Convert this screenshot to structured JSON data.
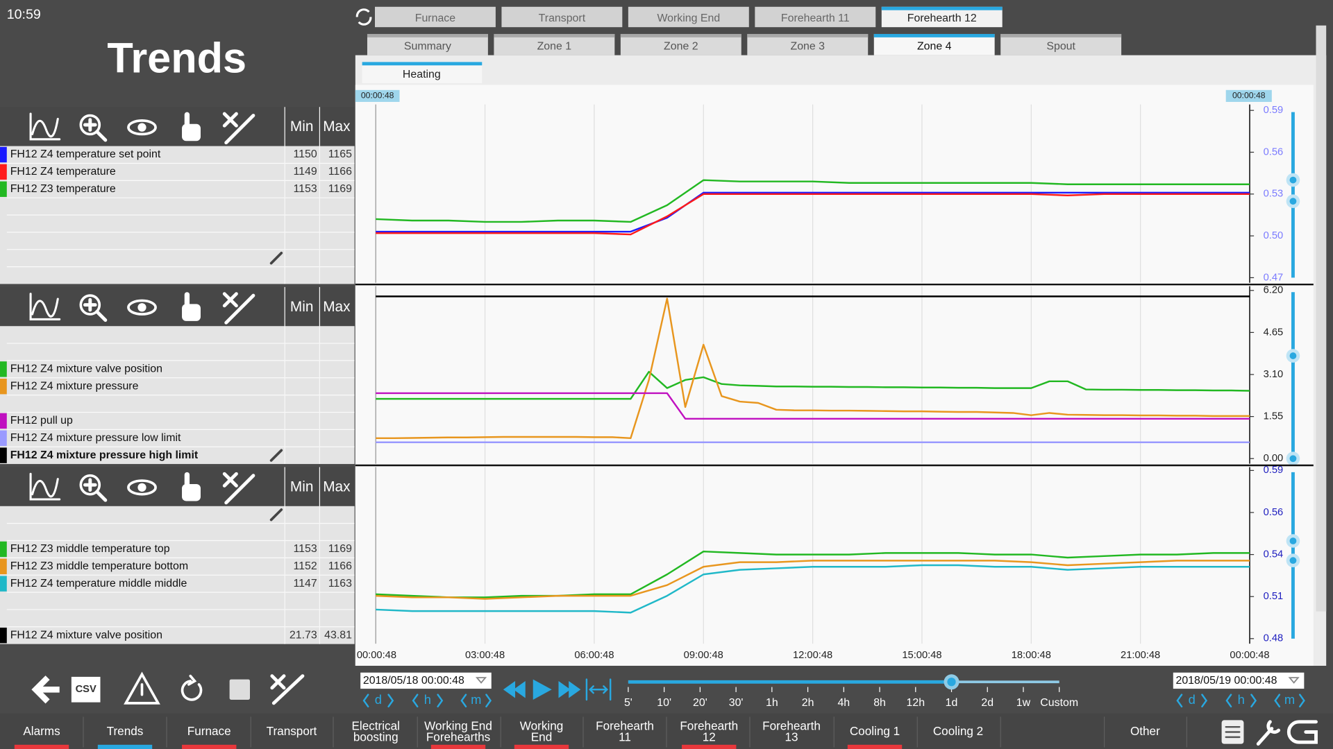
{
  "status": {
    "time": "10:59"
  },
  "header": {
    "title": "Trends"
  },
  "top_tabs": [
    "Furnace",
    "Transport",
    "Working End",
    "Forehearth 11",
    "Forehearth 12"
  ],
  "top_tabs_active": 4,
  "zone_tabs": [
    "Summary",
    "Zone 1",
    "Zone 2",
    "Zone 3",
    "Zone 4",
    "Spout"
  ],
  "zone_tabs_active": 4,
  "sub_tab": "Heating",
  "cursor_times": [
    "00:00:48",
    "00:00:48"
  ],
  "panel_headers": [
    "Min",
    "Max"
  ],
  "time_axis": [
    "00:00:48",
    "03:00:48",
    "06:00:48",
    "09:00:48",
    "12:00:48",
    "15:00:48",
    "18:00:48",
    "21:00:48",
    "00:00:48"
  ],
  "chart_data": [
    {
      "type": "line",
      "ylim": [
        0.47,
        0.59
      ],
      "yticks": [
        0.47,
        {
          "value": 0.5,
          "label": "0.50"
        },
        0.53,
        0.56,
        0.59
      ],
      "axis_color": "#7b7bff",
      "series": [
        {
          "name": "FH12 Z4 temperature set point",
          "color": "#1a1aff",
          "min": 1150,
          "max": 1165,
          "values": [
            0.503,
            0.503,
            0.503,
            0.503,
            0.503,
            0.503,
            0.503,
            0.503,
            0.513,
            0.531,
            0.531,
            0.531,
            0.531,
            0.531,
            0.531,
            0.531,
            0.531,
            0.531,
            0.531,
            0.531,
            0.531,
            0.531,
            0.531,
            0.531,
            0.531
          ]
        },
        {
          "name": "FH12 Z4 temperature",
          "color": "#ff1a1a",
          "min": 1149,
          "max": 1166,
          "values": [
            0.502,
            0.502,
            0.502,
            0.502,
            0.502,
            0.502,
            0.502,
            0.501,
            0.514,
            0.53,
            0.53,
            0.53,
            0.53,
            0.53,
            0.53,
            0.53,
            0.53,
            0.53,
            0.53,
            0.529,
            0.53,
            0.53,
            0.53,
            0.53,
            0.53
          ]
        },
        {
          "name": "FH12 Z3 temperature",
          "color": "#22b822",
          "min": 1153,
          "max": 1169,
          "values": [
            0.512,
            0.511,
            0.511,
            0.51,
            0.51,
            0.511,
            0.511,
            0.51,
            0.522,
            0.54,
            0.539,
            0.539,
            0.539,
            0.538,
            0.538,
            0.538,
            0.538,
            0.538,
            0.538,
            0.537,
            0.537,
            0.537,
            0.537,
            0.537,
            0.537
          ]
        }
      ]
    },
    {
      "type": "line",
      "ylim": [
        0,
        6.2
      ],
      "yticks": [
        {
          "value": 0,
          "label": "0.00"
        },
        1.55,
        {
          "value": 3.1,
          "label": "3.10"
        },
        4.65,
        {
          "value": 6.2,
          "label": "6.20"
        }
      ],
      "axis_color": "#222222",
      "series": [
        {
          "name": "FH12 Z4 mixture valve position",
          "color": "#22b822",
          "values": [
            2.2,
            2.2,
            2.2,
            2.2,
            2.2,
            2.2,
            2.2,
            2.2,
            2.2,
            2.2,
            2.2,
            2.2,
            2.2,
            2.2,
            2.2,
            3.2,
            2.6,
            2.9,
            3.0,
            2.75,
            2.7,
            2.68,
            2.66,
            2.66,
            2.65,
            2.65,
            2.64,
            2.64,
            2.63,
            2.63,
            2.62,
            2.62,
            2.61,
            2.61,
            2.6,
            2.6,
            2.6,
            2.85,
            2.85,
            2.55,
            2.54,
            2.54,
            2.53,
            2.53,
            2.52,
            2.52,
            2.51,
            2.51,
            2.5
          ]
        },
        {
          "name": "FH12 Z4 mixture pressure",
          "color": "#e8961e",
          "values": [
            0.75,
            0.75,
            0.76,
            0.77,
            0.78,
            0.78,
            0.79,
            0.8,
            0.8,
            0.8,
            0.8,
            0.8,
            0.79,
            0.79,
            0.75,
            2.9,
            5.9,
            1.9,
            4.2,
            2.3,
            2.1,
            2.05,
            1.8,
            1.78,
            1.78,
            1.77,
            1.77,
            1.76,
            1.75,
            1.74,
            1.74,
            1.73,
            1.72,
            1.72,
            1.7,
            1.68,
            1.6,
            1.68,
            1.62,
            1.61,
            1.6,
            1.6,
            1.59,
            1.59,
            1.58,
            1.58,
            1.57,
            1.57,
            1.57
          ]
        },
        {
          "name": "FH12 pull up",
          "color": "#c010c0",
          "values": [
            2.41,
            2.41,
            2.41,
            2.41,
            2.41,
            2.41,
            2.41,
            2.41,
            2.41,
            2.41,
            2.41,
            2.41,
            2.41,
            2.41,
            2.41,
            2.41,
            2.41,
            1.47,
            1.47,
            1.47,
            1.47,
            1.47,
            1.47,
            1.47,
            1.47,
            1.47,
            1.47,
            1.47,
            1.47,
            1.47,
            1.47,
            1.47,
            1.47,
            1.47,
            1.47,
            1.47,
            1.47,
            1.47,
            1.47,
            1.47,
            1.47,
            1.47,
            1.47,
            1.47,
            1.47,
            1.47,
            1.47,
            1.47,
            1.47
          ]
        },
        {
          "name": "FH12 Z4 mixture pressure low limit",
          "color": "#9a9aff",
          "values": [
            0.6,
            0.6,
            0.6,
            0.6,
            0.6,
            0.6,
            0.6,
            0.6,
            0.6,
            0.6,
            0.6,
            0.6,
            0.6,
            0.6,
            0.6,
            0.6,
            0.6,
            0.6,
            0.6,
            0.6,
            0.6,
            0.6,
            0.6,
            0.6,
            0.6,
            0.6,
            0.6,
            0.6,
            0.6,
            0.6,
            0.6,
            0.6,
            0.6,
            0.6,
            0.6,
            0.6,
            0.6,
            0.6,
            0.6,
            0.6,
            0.6,
            0.6,
            0.6,
            0.6,
            0.6,
            0.6,
            0.6,
            0.6,
            0.6
          ]
        },
        {
          "name": "FH12 Z4 mixture pressure high limit",
          "color": "#000000",
          "bold": true,
          "values": [
            5.98,
            5.98,
            5.98,
            5.98,
            5.98,
            5.98,
            5.98,
            5.98,
            5.98,
            5.98,
            5.98,
            5.98,
            5.98,
            5.98,
            5.98,
            5.98,
            5.98,
            5.98,
            5.98,
            5.98,
            5.98,
            5.98,
            5.98,
            5.98,
            5.98,
            5.98,
            5.98,
            5.98,
            5.98,
            5.98,
            5.98,
            5.98,
            5.98,
            5.98,
            5.98,
            5.98,
            5.98,
            5.98,
            5.98,
            5.98,
            5.98,
            5.98,
            5.98,
            5.98,
            5.98,
            5.98,
            5.98,
            5.98,
            5.98
          ]
        }
      ]
    },
    {
      "type": "line",
      "ylim": [
        0.48,
        0.59
      ],
      "yticks": [
        0.48,
        {
          "value": 0.5075,
          "label": "0.51"
        },
        {
          "value": 0.535,
          "label": "0.54"
        },
        {
          "value": 0.5625,
          "label": "0.56"
        },
        0.59
      ],
      "axis_color": "#2020c0",
      "series": [
        {
          "name": "FH12 Z3 middle temperature top",
          "color": "#22b822",
          "min": 1153,
          "max": 1169,
          "values": [
            0.509,
            0.508,
            0.507,
            0.507,
            0.508,
            0.508,
            0.509,
            0.509,
            0.522,
            0.537,
            0.536,
            0.535,
            0.535,
            0.535,
            0.536,
            0.536,
            0.536,
            0.535,
            0.535,
            0.533,
            0.534,
            0.535,
            0.535,
            0.536,
            0.536
          ]
        },
        {
          "name": "FH12 Z3 middle temperature bottom",
          "color": "#e8961e",
          "min": 1152,
          "max": 1166,
          "values": [
            0.508,
            0.507,
            0.507,
            0.506,
            0.507,
            0.508,
            0.508,
            0.508,
            0.515,
            0.527,
            0.53,
            0.53,
            0.531,
            0.531,
            0.531,
            0.531,
            0.531,
            0.531,
            0.53,
            0.528,
            0.529,
            0.53,
            0.531,
            0.531,
            0.531
          ]
        },
        {
          "name": "FH12 Z4 temperature middle middle",
          "color": "#20b8c8",
          "min": 1147,
          "max": 1163,
          "values": [
            0.499,
            0.498,
            0.498,
            0.498,
            0.498,
            0.498,
            0.498,
            0.497,
            0.508,
            0.522,
            0.525,
            0.526,
            0.527,
            0.527,
            0.527,
            0.528,
            0.528,
            0.527,
            0.527,
            0.525,
            0.526,
            0.527,
            0.527,
            0.527,
            0.527
          ]
        },
        {
          "name": "FH12 Z4 mixture valve position",
          "color": "#000000",
          "min": 21.73,
          "max": 43.81
        }
      ]
    }
  ],
  "controls": {
    "csv": "CSV",
    "date_from": "2018/05/18 00:00:48",
    "date_to": "2018/05/19 00:00:48",
    "step_units": [
      "d",
      "h",
      "m"
    ],
    "ranges": [
      "5'",
      "10'",
      "20'",
      "30'",
      "1h",
      "2h",
      "4h",
      "8h",
      "12h",
      "1d",
      "2d",
      "1w",
      "Custom"
    ],
    "range_selected": 9
  },
  "nav": [
    {
      "lines": [
        "Alarms"
      ],
      "bar": "#e8373b"
    },
    {
      "lines": [
        "Trends"
      ],
      "bar": "#29a8e0"
    },
    {
      "lines": [
        "Furnace"
      ],
      "bar": "#e8373b"
    },
    {
      "lines": [
        "Transport"
      ],
      "bar": null
    },
    {
      "lines": [
        "Electrical",
        "boosting"
      ],
      "bar": null
    },
    {
      "lines": [
        "Working End",
        "Forehearths"
      ],
      "bar": "#e8373b"
    },
    {
      "lines": [
        "Working",
        "End"
      ],
      "bar": "#e8373b"
    },
    {
      "lines": [
        "Forehearth",
        "11"
      ],
      "bar": null
    },
    {
      "lines": [
        "Forehearth",
        "12"
      ],
      "bar": "#e8373b"
    },
    {
      "lines": [
        "Forehearth",
        "13"
      ],
      "bar": null
    },
    {
      "lines": [
        "Cooling 1"
      ],
      "bar": "#e8373b"
    },
    {
      "lines": [
        "Cooling 2"
      ],
      "bar": null
    },
    {
      "lines": [
        "Other"
      ],
      "bar": null
    }
  ]
}
